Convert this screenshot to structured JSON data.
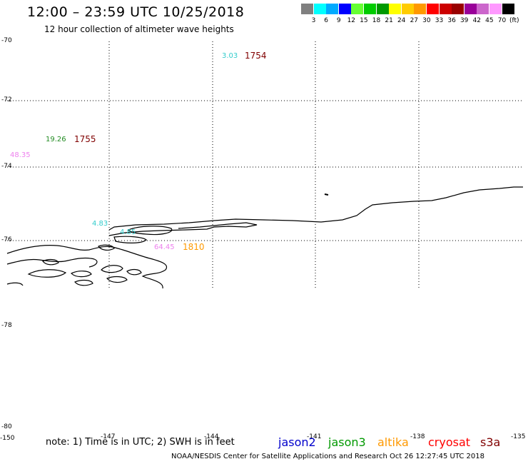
{
  "title": "12:00 – 23:59 UTC 10/25/2018",
  "subtitle": "12 hour collection of altimeter wave heights",
  "legend": {
    "unit": "(ft)",
    "items": [
      {
        "label": "3",
        "color": "#808080"
      },
      {
        "label": "6",
        "color": "#00ffff"
      },
      {
        "label": "9",
        "color": "#00aaff"
      },
      {
        "label": "12",
        "color": "#0000ff"
      },
      {
        "label": "15",
        "color": "#66ff33"
      },
      {
        "label": "18",
        "color": "#00cc00"
      },
      {
        "label": "21",
        "color": "#009900"
      },
      {
        "label": "24",
        "color": "#ffff00"
      },
      {
        "label": "27",
        "color": "#ffcc00"
      },
      {
        "label": "30",
        "color": "#ff9900"
      },
      {
        "label": "33",
        "color": "#ff0000"
      },
      {
        "label": "36",
        "color": "#cc0000"
      },
      {
        "label": "39",
        "color": "#990000"
      },
      {
        "label": "42",
        "color": "#990099"
      },
      {
        "label": "45",
        "color": "#cc66cc"
      },
      {
        "label": "70",
        "color": "#ff99ff"
      },
      {
        "label": "",
        "color": "#000000"
      }
    ]
  },
  "axes": {
    "y_labels": [
      "-70",
      "-72",
      "-74",
      "-76",
      "-78",
      "-80"
    ],
    "x_labels": [
      "-150",
      "-147",
      "-144",
      "-141",
      "-138",
      "-135"
    ]
  },
  "observations": [
    {
      "value": "3.03",
      "value_color": "#33cccc",
      "time": "1754",
      "time_color": "#800000"
    },
    {
      "value": "19.26",
      "value_color": "#228b22",
      "time": "1755",
      "time_color": "#800000"
    },
    {
      "value": "48.35",
      "value_color": "#ee82ee",
      "time": "",
      "time_color": "#800000"
    },
    {
      "value": "4.83",
      "value_color": "#33cccc",
      "time": "",
      "time_color": "#800000"
    },
    {
      "value": "4.85",
      "value_color": "#33cccc",
      "time": "",
      "time_color": "#800000"
    },
    {
      "value": "64.45",
      "value_color": "#ee82ee",
      "time": "1810",
      "time_color": "#ff9900"
    }
  ],
  "note": "note: 1) Time is in UTC; 2) SWH is in feet",
  "satellites": [
    {
      "name": "jason2",
      "color": "#0000cc"
    },
    {
      "name": "jason3",
      "color": "#009900"
    },
    {
      "name": "altika",
      "color": "#ff9900"
    },
    {
      "name": "cryosat",
      "color": "#ff0000"
    },
    {
      "name": "s3a",
      "color": "#800000"
    }
  ],
  "credit": "NOAA/NESDIS Center for Satellite Applications and Research    Oct 26 12:27:45 UTC 2018"
}
